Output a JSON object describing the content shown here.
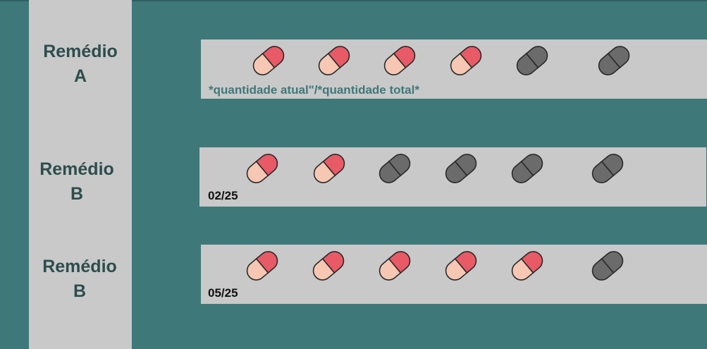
{
  "colors": {
    "background": "#3f7879",
    "panel": "#c9c9c9",
    "pill_full_top": "#e85a66",
    "pill_full_bottom": "#f6c7b3",
    "pill_empty": "#6b6b6b",
    "caption_teal": "#3f7879"
  },
  "sidebar": {
    "medicines": [
      {
        "line1": "Remédio",
        "line2": "A"
      },
      {
        "line1": "Remédio",
        "line2": "B"
      },
      {
        "line1": "Remédio",
        "line2": "B"
      }
    ]
  },
  "rows": [
    {
      "caption": "*quantidade atual\"/*quantidade total*",
      "taken": 4,
      "total": 6,
      "icon": "capsule-icon"
    },
    {
      "caption": "02/25",
      "taken": 2,
      "total": 6,
      "icon": "capsule-icon"
    },
    {
      "caption": "05/25",
      "taken": 5,
      "total": 6,
      "icon": "capsule-icon"
    }
  ]
}
